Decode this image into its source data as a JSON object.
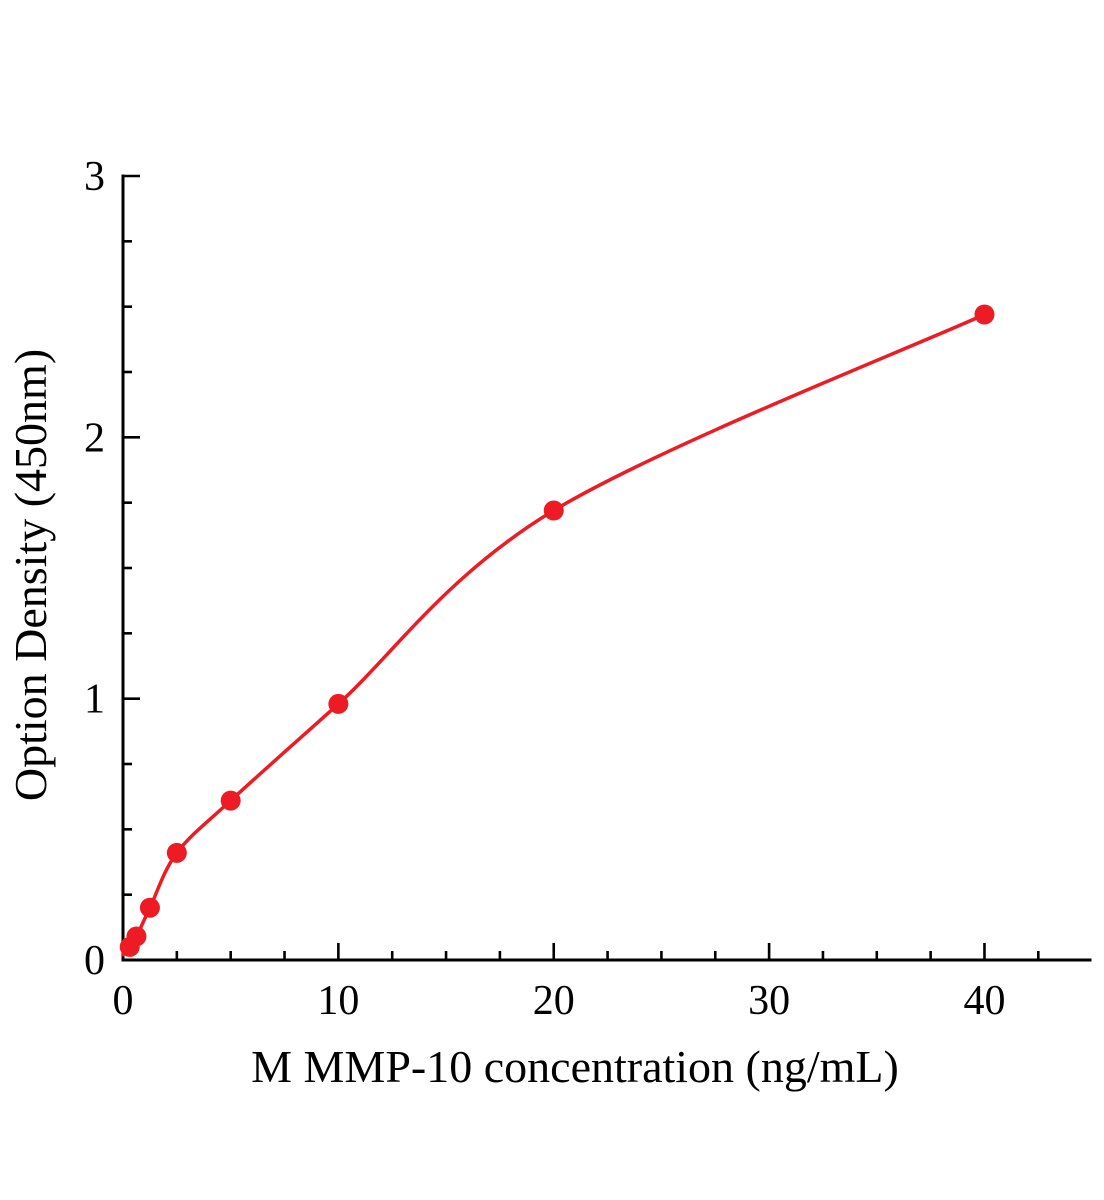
{
  "chart_data": {
    "type": "scatter",
    "title": "",
    "xlabel": "M MMP-10 concentration (ng/mL)",
    "ylabel": "Option Density (450nm)",
    "series": [
      {
        "x": [
          0.3125,
          0.625,
          1.25,
          2.5,
          5,
          10,
          20,
          40
        ],
        "y": [
          0.05,
          0.09,
          0.2,
          0.41,
          0.61,
          0.98,
          1.72,
          2.47
        ]
      }
    ],
    "fit": {
      "type": "smooth-curve",
      "start": [
        0,
        0.02
      ]
    },
    "xlim": [
      0,
      44.9
    ],
    "ylim": [
      0,
      3
    ],
    "x_major_ticks": [
      0,
      10,
      20,
      30,
      40
    ],
    "y_major_ticks": [
      0,
      1,
      2,
      3
    ],
    "x_minor_step": 2.5,
    "y_minor_step": 0.25,
    "grid": false,
    "legend": "none",
    "colors": {
      "points": "#ed1c24",
      "curve": "#ed1c24",
      "axis": "#000000",
      "background": "#ffffff"
    }
  }
}
